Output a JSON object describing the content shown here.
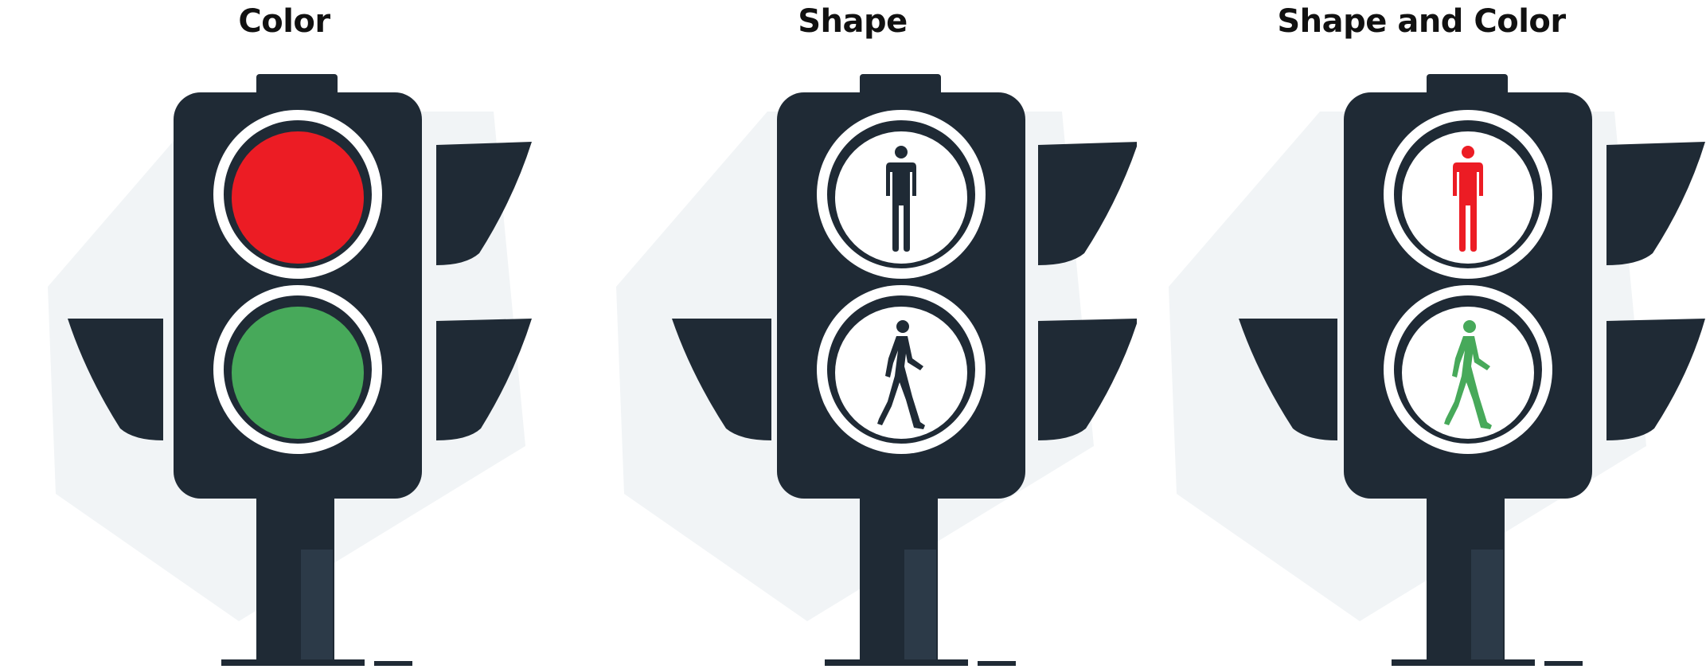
{
  "panels": [
    {
      "title": "Color",
      "signal_style": "color"
    },
    {
      "title": "Shape",
      "signal_style": "shape"
    },
    {
      "title": "Shape and Color",
      "signal_style": "shape-and-color"
    }
  ],
  "colors": {
    "housing": "#1f2a35",
    "shadow": "#e9eef2",
    "ring": "#ffffff",
    "stop_red": "#ec1c24",
    "go_green": "#47a95a",
    "figure_dark": "#1f2a35",
    "figure_red": "#ec1c24",
    "figure_green": "#47a95a",
    "title_text": "#111111"
  },
  "icons": {
    "top_signal": "standing-man-icon",
    "bottom_signal": "walking-man-icon"
  }
}
